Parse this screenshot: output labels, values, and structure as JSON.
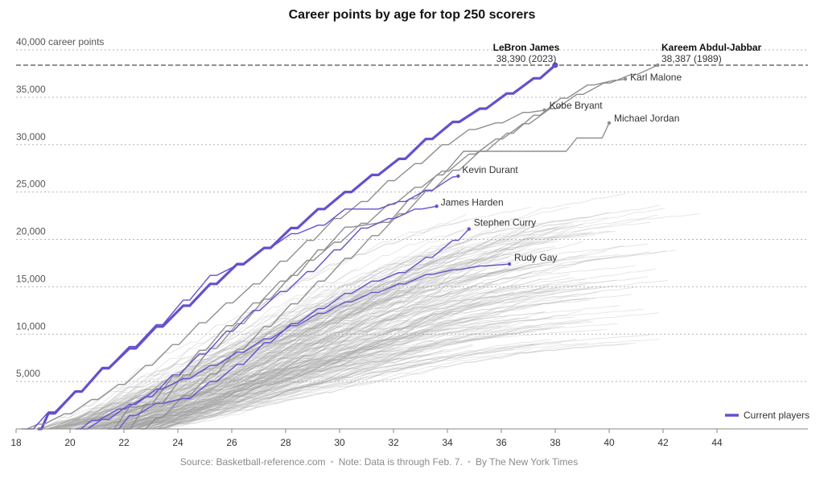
{
  "chart_data": {
    "type": "line",
    "title": "Career points by age for top 250 scorers",
    "x_axis": {
      "min": 18,
      "max": 46,
      "ticks": [
        18,
        20,
        22,
        24,
        26,
        28,
        30,
        32,
        34,
        36,
        38,
        40,
        42,
        44
      ]
    },
    "y_axis": {
      "min": 0,
      "max": 40000,
      "ticks": [
        5000,
        10000,
        15000,
        20000,
        25000,
        30000,
        35000,
        40000
      ],
      "tick_labels": [
        "5,000",
        "10,000",
        "15,000",
        "20,000",
        "25,000",
        "30,000",
        "35,000",
        "40,000 career points"
      ]
    },
    "grid": "horizontal-dotted",
    "record_line": {
      "value": 38390,
      "annotations": [
        {
          "name": "LeBron James",
          "detail": "38,390 (2023)",
          "age": 38.0
        },
        {
          "name": "Kareem Abdul-Jabbar",
          "detail": "38,387 (1989)",
          "age": 42.0
        }
      ]
    },
    "legend": {
      "label": "Current players",
      "color": "#6650cc",
      "position": "bottom-right"
    },
    "highlighted_series": [
      {
        "name": "LeBron James",
        "current": true,
        "emphasis": true,
        "points": [
          [
            18.8,
            0
          ],
          [
            19.2,
            1650
          ],
          [
            20.2,
            3950
          ],
          [
            21.2,
            6400
          ],
          [
            22.2,
            8500
          ],
          [
            23.2,
            10800
          ],
          [
            24.2,
            13000
          ],
          [
            25.2,
            15300
          ],
          [
            26.2,
            17400
          ],
          [
            27.2,
            19100
          ],
          [
            28.2,
            21200
          ],
          [
            29.2,
            23200
          ],
          [
            30.2,
            25000
          ],
          [
            31.2,
            26800
          ],
          [
            32.2,
            28500
          ],
          [
            33.2,
            30600
          ],
          [
            34.2,
            32400
          ],
          [
            35.2,
            33800
          ],
          [
            36.2,
            35400
          ],
          [
            37.2,
            37000
          ],
          [
            38.0,
            38390
          ]
        ]
      },
      {
        "name": "Kareem Abdul-Jabbar",
        "current": false,
        "points": [
          [
            22.0,
            0
          ],
          [
            22.8,
            2600
          ],
          [
            23.8,
            5500
          ],
          [
            24.8,
            8300
          ],
          [
            25.8,
            10900
          ],
          [
            26.8,
            13300
          ],
          [
            27.8,
            15600
          ],
          [
            28.8,
            17800
          ],
          [
            29.8,
            19700
          ],
          [
            30.8,
            21700
          ],
          [
            31.8,
            23700
          ],
          [
            32.8,
            25500
          ],
          [
            33.8,
            27200
          ],
          [
            34.8,
            29000
          ],
          [
            35.8,
            30600
          ],
          [
            36.8,
            32200
          ],
          [
            37.8,
            33800
          ],
          [
            38.8,
            35300
          ],
          [
            39.8,
            36500
          ],
          [
            40.8,
            37400
          ],
          [
            41.8,
            38387
          ]
        ]
      },
      {
        "name": "Karl Malone",
        "current": false,
        "points": [
          [
            22.6,
            0
          ],
          [
            23.2,
            1200
          ],
          [
            24.2,
            3500
          ],
          [
            25.2,
            5800
          ],
          [
            26.2,
            8400
          ],
          [
            27.2,
            10800
          ],
          [
            28.2,
            13200
          ],
          [
            29.2,
            15600
          ],
          [
            30.2,
            18000
          ],
          [
            31.2,
            20400
          ],
          [
            32.2,
            22700
          ],
          [
            33.2,
            25100
          ],
          [
            34.2,
            27300
          ],
          [
            35.2,
            29300
          ],
          [
            36.2,
            31200
          ],
          [
            37.2,
            33100
          ],
          [
            38.2,
            34900
          ],
          [
            39.2,
            36300
          ],
          [
            40.2,
            36800
          ],
          [
            40.6,
            36928
          ]
        ]
      },
      {
        "name": "Kobe Bryant",
        "current": false,
        "points": [
          [
            18.2,
            0
          ],
          [
            18.8,
            500
          ],
          [
            19.8,
            1600
          ],
          [
            20.8,
            3100
          ],
          [
            21.8,
            4700
          ],
          [
            22.8,
            6700
          ],
          [
            23.8,
            8900
          ],
          [
            24.8,
            11200
          ],
          [
            25.8,
            13300
          ],
          [
            26.8,
            15300
          ],
          [
            27.8,
            17700
          ],
          [
            28.8,
            19900
          ],
          [
            29.8,
            22200
          ],
          [
            30.8,
            24000
          ],
          [
            31.8,
            26200
          ],
          [
            32.8,
            28000
          ],
          [
            33.8,
            30000
          ],
          [
            34.8,
            31600
          ],
          [
            35.8,
            32300
          ],
          [
            36.8,
            33400
          ],
          [
            37.6,
            33643
          ]
        ]
      },
      {
        "name": "Michael Jordan",
        "current": false,
        "points": [
          [
            21.4,
            0
          ],
          [
            22.2,
            2300
          ],
          [
            23.2,
            2700
          ],
          [
            24.2,
            5700
          ],
          [
            25.2,
            8500
          ],
          [
            26.2,
            11100
          ],
          [
            27.2,
            13700
          ],
          [
            28.2,
            16200
          ],
          [
            29.2,
            18900
          ],
          [
            30.2,
            21300
          ],
          [
            31.6,
            21800
          ],
          [
            32.6,
            24300
          ],
          [
            33.6,
            26800
          ],
          [
            34.6,
            29300
          ],
          [
            38.2,
            29300
          ],
          [
            38.8,
            30700
          ],
          [
            39.6,
            30700
          ],
          [
            40.0,
            32292
          ]
        ]
      },
      {
        "name": "Kevin Durant",
        "current": true,
        "points": [
          [
            18.4,
            0
          ],
          [
            19.2,
            1800
          ],
          [
            20.2,
            4000
          ],
          [
            21.2,
            6500
          ],
          [
            22.2,
            8700
          ],
          [
            23.2,
            11000
          ],
          [
            24.2,
            13600
          ],
          [
            25.2,
            16200
          ],
          [
            26.2,
            17300
          ],
          [
            27.2,
            19100
          ],
          [
            28.2,
            20600
          ],
          [
            29.2,
            21500
          ],
          [
            30.2,
            23200
          ],
          [
            31.2,
            23200
          ],
          [
            32.2,
            24000
          ],
          [
            33.2,
            25200
          ],
          [
            34.2,
            26600
          ],
          [
            34.4,
            26684
          ]
        ]
      },
      {
        "name": "James Harden",
        "current": true,
        "points": [
          [
            20.2,
            0
          ],
          [
            20.8,
            900
          ],
          [
            21.8,
            2100
          ],
          [
            22.8,
            3400
          ],
          [
            23.8,
            5700
          ],
          [
            24.8,
            7900
          ],
          [
            25.8,
            10300
          ],
          [
            26.8,
            12500
          ],
          [
            27.8,
            14500
          ],
          [
            28.8,
            16600
          ],
          [
            29.8,
            18900
          ],
          [
            30.8,
            21200
          ],
          [
            31.8,
            22200
          ],
          [
            32.8,
            23200
          ],
          [
            33.6,
            23500
          ]
        ]
      },
      {
        "name": "Stephen Curry",
        "current": true,
        "points": [
          [
            21.6,
            0
          ],
          [
            22.2,
            1400
          ],
          [
            23.2,
            2700
          ],
          [
            24.2,
            3200
          ],
          [
            25.2,
            5000
          ],
          [
            26.2,
            6800
          ],
          [
            27.2,
            9100
          ],
          [
            28.2,
            11100
          ],
          [
            29.2,
            12700
          ],
          [
            30.2,
            14300
          ],
          [
            31.2,
            15600
          ],
          [
            32.2,
            16500
          ],
          [
            33.2,
            18100
          ],
          [
            34.2,
            19900
          ],
          [
            34.8,
            21100
          ]
        ]
      },
      {
        "name": "Rudy Gay",
        "current": true,
        "points": [
          [
            20.4,
            0
          ],
          [
            21.2,
            1000
          ],
          [
            22.2,
            2600
          ],
          [
            23.2,
            4200
          ],
          [
            24.2,
            5300
          ],
          [
            25.2,
            6700
          ],
          [
            26.2,
            8100
          ],
          [
            27.2,
            9500
          ],
          [
            28.2,
            10900
          ],
          [
            29.2,
            12200
          ],
          [
            30.2,
            13400
          ],
          [
            31.2,
            14400
          ],
          [
            32.2,
            15300
          ],
          [
            33.2,
            16300
          ],
          [
            34.2,
            16800
          ],
          [
            35.2,
            17200
          ],
          [
            36.3,
            17400
          ]
        ]
      }
    ],
    "background_series_count": 241
  },
  "footer": {
    "source": "Source: Basketball-reference.com",
    "note": "Note: Data is through Feb. 7.",
    "byline": "By The New York Times"
  }
}
